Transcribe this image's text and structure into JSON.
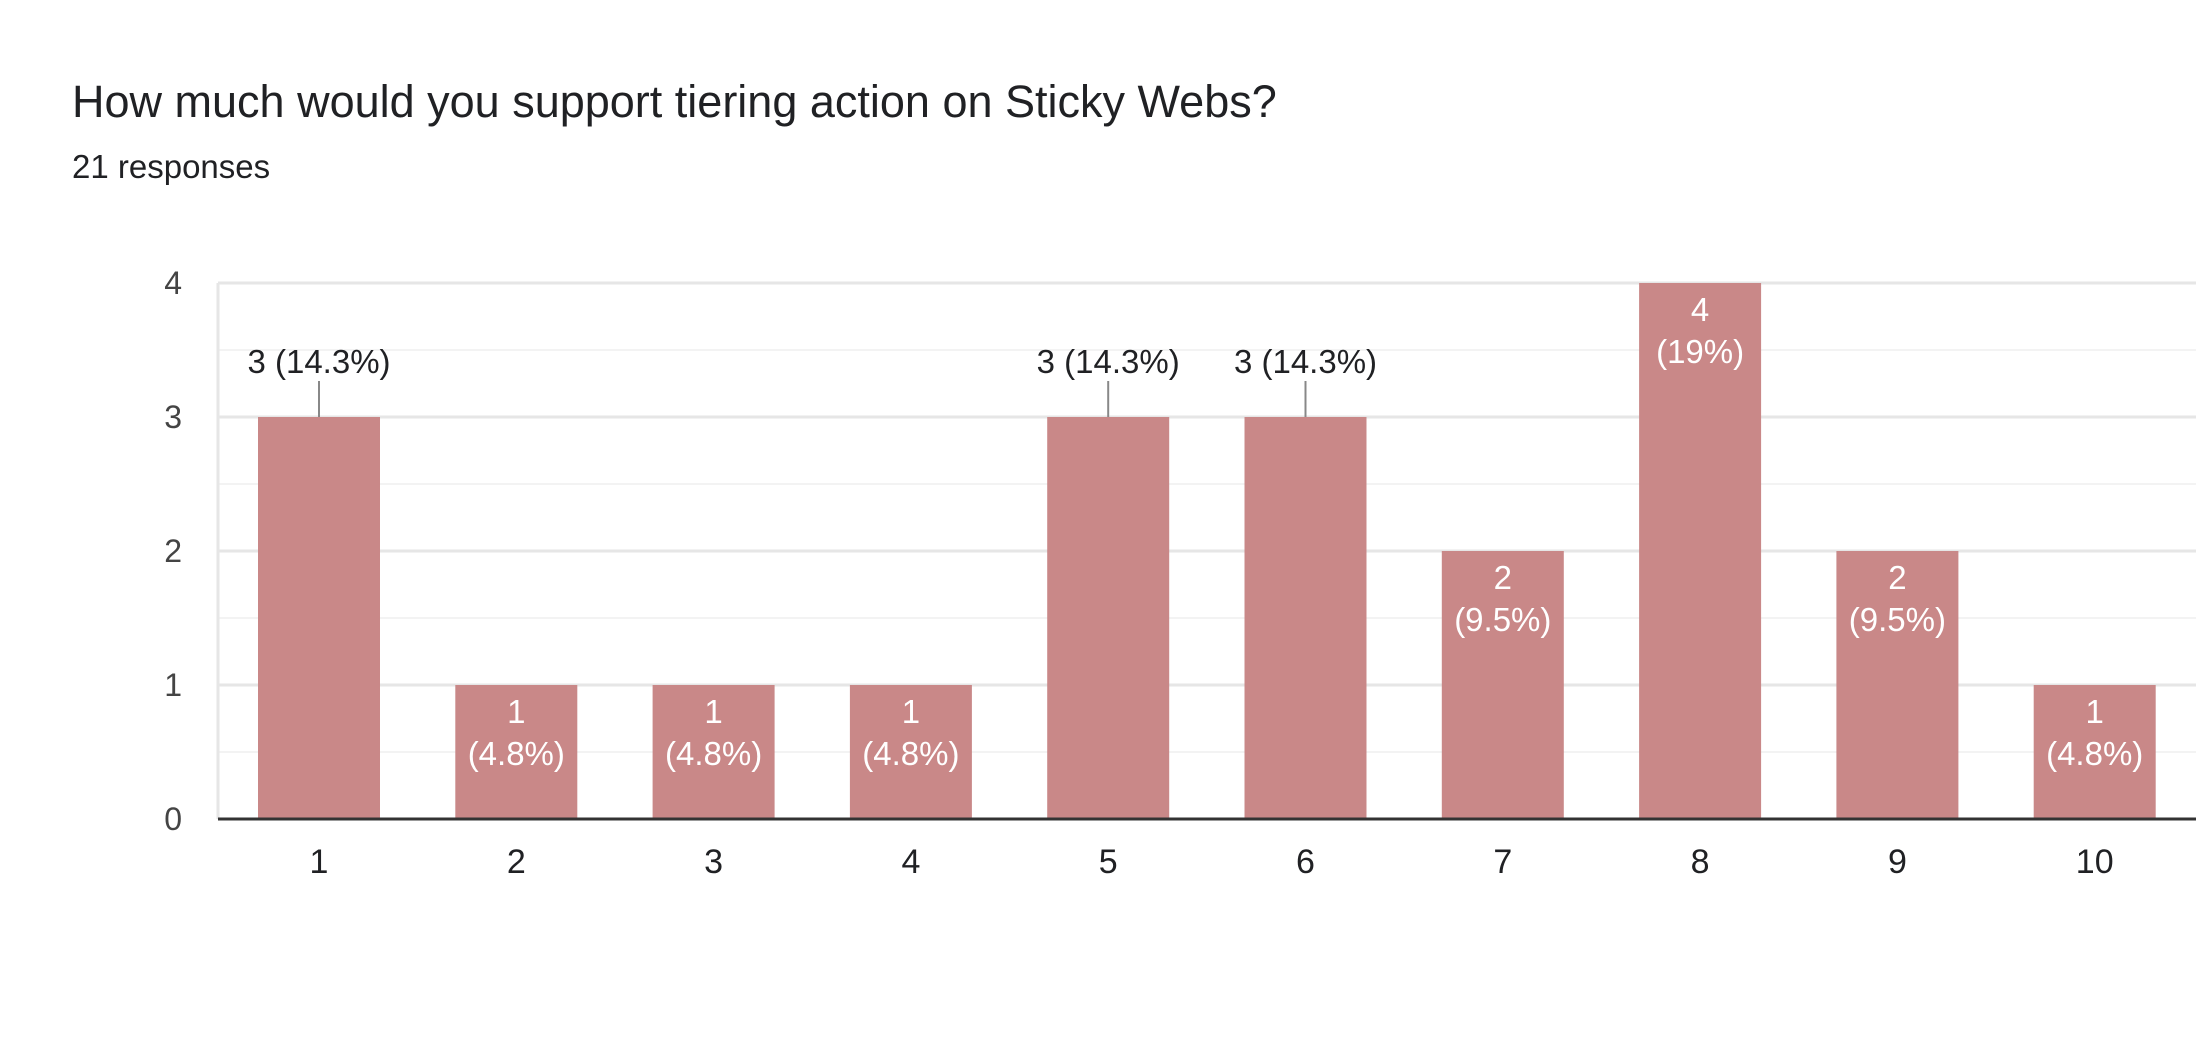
{
  "header": {
    "question": "How much would you support tiering action on Sticky Webs?",
    "responses": "21 responses"
  },
  "colors": {
    "bar": "#c98888",
    "grid": "#e6e6e6",
    "axis": "#333333"
  },
  "chart_data": {
    "type": "bar",
    "categories": [
      "1",
      "2",
      "3",
      "4",
      "5",
      "6",
      "7",
      "8",
      "9",
      "10"
    ],
    "values": [
      3,
      1,
      1,
      1,
      3,
      3,
      2,
      4,
      2,
      1
    ],
    "labels": [
      "3 (14.3%)",
      "1 (4.8%)",
      "1 (4.8%)",
      "1 (4.8%)",
      "3 (14.3%)",
      "3 (14.3%)",
      "2 (9.5%)",
      "4 (19%)",
      "2 (9.5%)",
      "1 (4.8%)"
    ],
    "label_count": [
      "3",
      "1",
      "1",
      "1",
      "3",
      "3",
      "2",
      "4",
      "2",
      "1"
    ],
    "label_pct": [
      "(14.3%)",
      "(4.8%)",
      "(4.8%)",
      "(4.8%)",
      "(14.3%)",
      "(14.3%)",
      "(9.5%)",
      "(19%)",
      "(9.5%)",
      "(4.8%)"
    ],
    "label_outside": [
      true,
      false,
      false,
      false,
      true,
      true,
      false,
      false,
      false,
      false
    ],
    "yticks": [
      0,
      1,
      2,
      3,
      4
    ],
    "ylim": [
      0,
      4
    ],
    "grid": true,
    "title": "",
    "xlabel": "",
    "ylabel": ""
  }
}
